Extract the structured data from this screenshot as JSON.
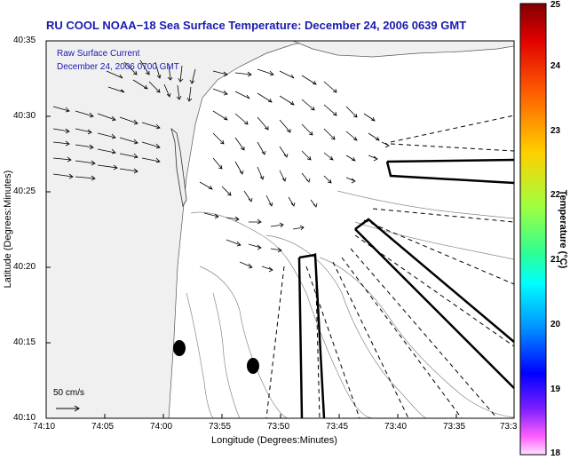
{
  "title": "RU COOL  NOAA−18  Sea Surface Temperature:  December 24, 2006 0639 GMT",
  "legend": {
    "line1": "Raw Surface Current",
    "line2": "December 24, 2006 0700 GMT"
  },
  "xlabel": "Longitude (Degrees:Minutes)",
  "ylabel": "Latitude (Degrees:Minutes)",
  "x_ticks": [
    "74:10",
    "74:05",
    "74:00",
    "73:55",
    "73:50",
    "73:45",
    "73:40",
    "73:35",
    "73:3"
  ],
  "y_ticks": [
    "40:35",
    "40:30",
    "40:25",
    "40:20",
    "40:15",
    "40:10"
  ],
  "colorbar": {
    "label": "Temperature (°C)",
    "ticks": [
      "25",
      "24",
      "23",
      "22",
      "21",
      "20",
      "19",
      "18"
    ],
    "range": [
      18,
      25
    ]
  },
  "scale_label": "50 cm/s",
  "colors": {
    "title": "#1a1ab0",
    "land": "#f0f0f0",
    "water": "#ffffff"
  }
}
